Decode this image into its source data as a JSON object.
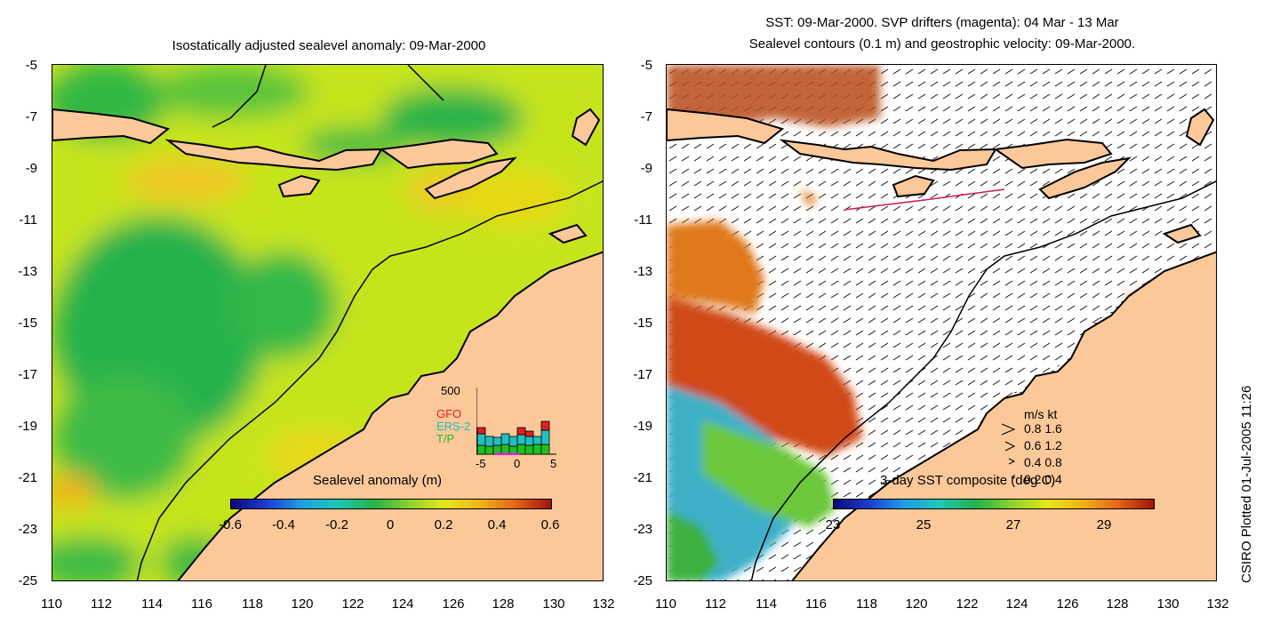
{
  "left_panel": {
    "title": "Isostatically adjusted sealevel anomaly: 09-Mar-2000",
    "y_ticks": [
      "-5",
      "-7",
      "-9",
      "-11",
      "-13",
      "-15",
      "-17",
      "-19",
      "-21",
      "-23",
      "-25"
    ],
    "x_ticks": [
      "110",
      "112",
      "114",
      "116",
      "118",
      "120",
      "122",
      "124",
      "126",
      "128",
      "130",
      "132"
    ],
    "colorbar": {
      "label": "Sealevel anomaly (m)",
      "ticks": [
        "-0.6",
        "-0.4",
        "-0.2",
        "0",
        "0.2",
        "0.4",
        "0.6"
      ]
    },
    "inset": {
      "y_label": "500",
      "legend": [
        "GFO",
        "ERS-2",
        "T/P"
      ],
      "legend_colors": [
        "#e02020",
        "#20c0c0",
        "#20c020"
      ],
      "x_ticks": [
        "-5",
        "0",
        "5"
      ]
    }
  },
  "right_panel": {
    "title_line1": "SST: 09-Mar-2000. SVP drifters (magenta): 04 Mar - 13 Mar",
    "title_line2": "Sealevel contours (0.1 m) and geostrophic velocity: 09-Mar-2000.",
    "y_ticks": [
      "-5",
      "-7",
      "-9",
      "-11",
      "-13",
      "-15",
      "-17",
      "-19",
      "-21",
      "-23",
      "-25"
    ],
    "x_ticks": [
      "110",
      "112",
      "114",
      "116",
      "118",
      "120",
      "122",
      "124",
      "126",
      "128",
      "130",
      "132"
    ],
    "colorbar": {
      "label": "3-day SST composite (deg C)",
      "ticks": [
        "23",
        "25",
        "27",
        "29"
      ]
    },
    "velocity_legend": {
      "header": "m/s  kt",
      "rows": [
        "0.8  1.6",
        "0.6  1.2",
        "0.4  0.8",
        "0.2  0.4"
      ]
    }
  },
  "side_credit": "CSIRO Plotted 01-Jul-2005 11:26",
  "colors": {
    "land": "#fbc89a",
    "coast": "#000000",
    "sea_green": "#22b24a",
    "sea_yellow": "#d8ea18",
    "sea_orange": "#f2b41a"
  }
}
